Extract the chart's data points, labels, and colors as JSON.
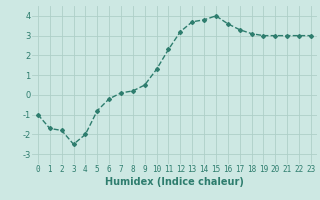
{
  "x": [
    0,
    1,
    2,
    3,
    4,
    5,
    6,
    7,
    8,
    9,
    10,
    11,
    12,
    13,
    14,
    15,
    16,
    17,
    18,
    19,
    20,
    21,
    22,
    23
  ],
  "y": [
    -1.0,
    -1.7,
    -1.8,
    -2.5,
    -2.0,
    -0.8,
    -0.2,
    0.1,
    0.2,
    0.5,
    1.3,
    2.3,
    3.2,
    3.7,
    3.8,
    4.0,
    3.6,
    3.3,
    3.1,
    3.0,
    3.0,
    3.0,
    3.0,
    3.0
  ],
  "line_color": "#2e7d6e",
  "marker": "D",
  "marker_size": 2.0,
  "line_width": 1.0,
  "xlabel": "Humidex (Indice chaleur)",
  "xlabel_fontsize": 7,
  "xlabel_fontweight": "bold",
  "ylim": [
    -3.5,
    4.5
  ],
  "xlim": [
    -0.5,
    23.5
  ],
  "yticks": [
    -3,
    -2,
    -1,
    0,
    1,
    2,
    3,
    4
  ],
  "xticks": [
    0,
    1,
    2,
    3,
    4,
    5,
    6,
    7,
    8,
    9,
    10,
    11,
    12,
    13,
    14,
    15,
    16,
    17,
    18,
    19,
    20,
    21,
    22,
    23
  ],
  "grid_color": "#aecfc8",
  "background_color": "#cde8e3",
  "tick_fontsize": 5.5,
  "ytick_fontsize": 6.0
}
